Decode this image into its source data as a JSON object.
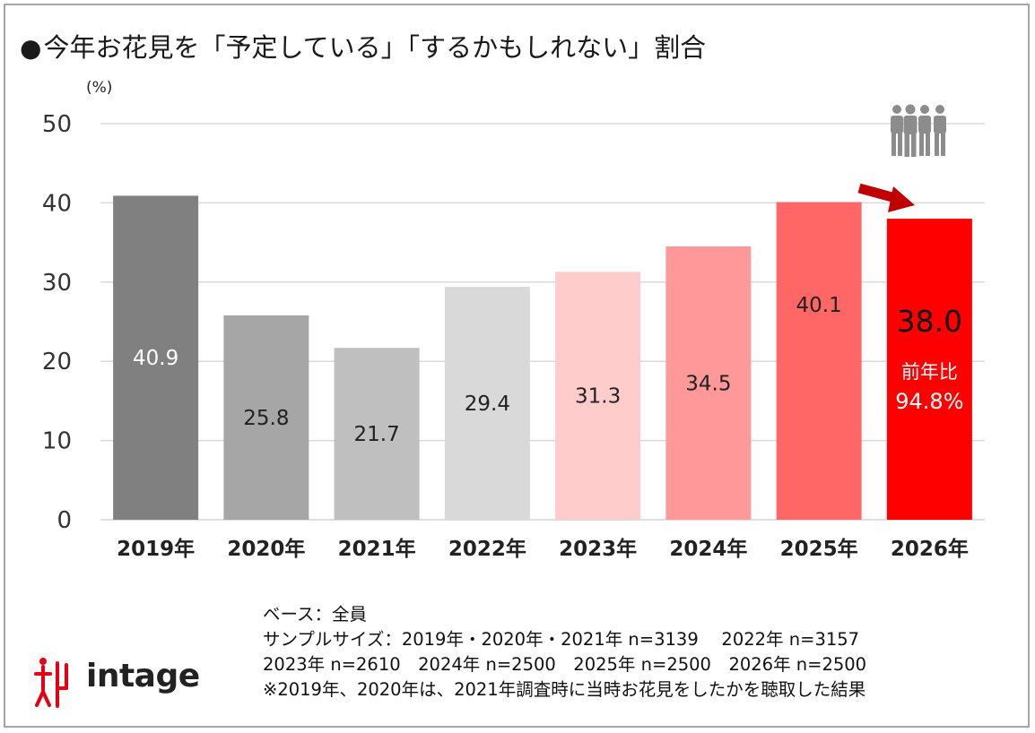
{
  "title": "今年お花見を「予定している」「するかもしれない」割合",
  "title_bullet": "●",
  "unit_label": "(%)",
  "colors": {
    "bars": [
      "#808080",
      "#a6a6a6",
      "#bfbfbf",
      "#d9d9d9",
      "#ffcccc",
      "#ff9999",
      "#ff6666",
      "#ff0000"
    ],
    "arrow": "#c00000",
    "people_icon": "#8c8c8c",
    "logo_mark": "#e60012"
  },
  "chart_data": {
    "type": "bar",
    "categories": [
      "2019年",
      "2020年",
      "2021年",
      "2022年",
      "2023年",
      "2024年",
      "2025年",
      "2026年"
    ],
    "values": [
      40.9,
      25.8,
      21.7,
      29.4,
      31.3,
      34.5,
      40.1,
      38.0
    ],
    "data_labels": [
      "40.9",
      "25.8",
      "21.7",
      "29.4",
      "31.3",
      "34.5",
      "40.1",
      "38.0"
    ],
    "ylim": [
      0,
      50
    ],
    "yticks": [
      0,
      10,
      20,
      30,
      40,
      50
    ],
    "grid": true,
    "annotation": {
      "label": "前年比",
      "value": "94.8%"
    }
  },
  "notes": [
    "ベース：全員",
    "サンプルサイズ：2019年・2020年・2021年 n=3139　 2022年 n=3157",
    "2023年 n=2610　2024年 n=2500　2025年 n=2500　2026年 n=2500",
    "※2019年、2020年は、2021年調査時に当時お花見をしたかを聴取した結果"
  ],
  "logo": {
    "text": "intage",
    "mark_icon": "intage-logo-mark-icon"
  },
  "icons": {
    "people": "people-group-icon",
    "arrow": "decrease-arrow-icon"
  }
}
